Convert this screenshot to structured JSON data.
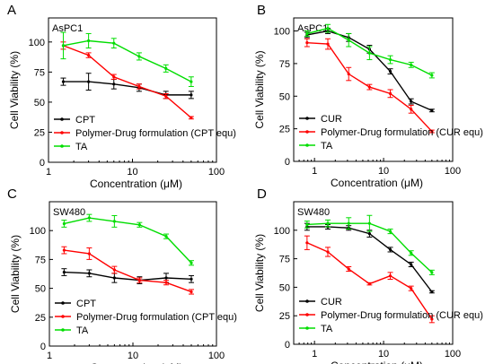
{
  "chart_data": [
    {
      "panel_label": "A",
      "cell_line": "AsPC1",
      "type": "line",
      "xscale": "log",
      "xlim": [
        1,
        100
      ],
      "ylim": [
        0,
        120
      ],
      "xticks": [
        1,
        10,
        100
      ],
      "yticks": [
        0,
        25,
        50,
        75,
        100
      ],
      "xlabel": "Concentration (μM)",
      "ylabel": "Cell Viability (%)",
      "legend_position": "bottom-left",
      "series": [
        {
          "name": "CPT",
          "color": "#000000",
          "x": [
            1.5,
            3,
            6,
            12,
            25,
            50
          ],
          "y": [
            67,
            67,
            65,
            62,
            56,
            56
          ],
          "err": [
            3,
            7,
            4,
            3,
            3,
            3
          ]
        },
        {
          "name": "Polymer-Drug formulation (CPT equ)",
          "color": "#ff0000",
          "x": [
            1.5,
            3,
            6,
            12,
            25,
            50
          ],
          "y": [
            97,
            89,
            71,
            63,
            55,
            37
          ],
          "err": [
            3,
            2,
            2,
            2,
            2,
            1
          ]
        },
        {
          "name": "TA",
          "color": "#00dd00",
          "x": [
            1.5,
            3,
            6,
            12,
            25,
            50
          ],
          "y": [
            97,
            101,
            99,
            88,
            78,
            67
          ],
          "err": [
            11,
            6,
            4,
            3,
            3,
            4
          ]
        }
      ]
    },
    {
      "panel_label": "B",
      "cell_line": "AsPC1",
      "type": "line",
      "xscale": "log",
      "xlim": [
        0.5,
        100
      ],
      "ylim": [
        0,
        110
      ],
      "xticks": [
        1,
        10,
        100
      ],
      "yticks": [
        0,
        25,
        50,
        75,
        100
      ],
      "xlabel": "Concentration (μM)",
      "ylabel": "Cell Viability (%)",
      "legend_position": "bottom-left",
      "series": [
        {
          "name": "CUR",
          "color": "#000000",
          "x": [
            0.78,
            1.56,
            3.125,
            6.25,
            12.5,
            25,
            50
          ],
          "y": [
            97,
            100,
            95,
            86,
            69,
            46,
            39
          ],
          "err": [
            2,
            2,
            3,
            3,
            2,
            2,
            1
          ]
        },
        {
          "name": "Polymer-Drug formulation (CUR equ)",
          "color": "#ff0000",
          "x": [
            0.78,
            1.56,
            3.125,
            6.25,
            12.5,
            25,
            50
          ],
          "y": [
            91,
            90,
            67,
            57,
            52,
            40,
            23
          ],
          "err": [
            3,
            4,
            5,
            2,
            3,
            3,
            1
          ]
        },
        {
          "name": "TA",
          "color": "#00dd00",
          "x": [
            0.78,
            1.56,
            3.125,
            6.25,
            12.5,
            25,
            50
          ],
          "y": [
            98,
            102,
            93,
            83,
            78,
            74,
            66
          ],
          "err": [
            2,
            3,
            5,
            5,
            3,
            2,
            2
          ]
        }
      ]
    },
    {
      "panel_label": "C",
      "cell_line": "SW480",
      "type": "line",
      "xscale": "log",
      "xlim": [
        1,
        100
      ],
      "ylim": [
        0,
        125
      ],
      "xticks": [
        1,
        10,
        100
      ],
      "yticks": [
        0,
        25,
        50,
        75,
        100
      ],
      "xlabel": "Concentration (μM)",
      "ylabel": "Cell Viability (%)",
      "legend_position": "bottom-left",
      "series": [
        {
          "name": "CPT",
          "color": "#000000",
          "x": [
            1.5,
            3,
            6,
            12,
            25,
            50
          ],
          "y": [
            64,
            63,
            59,
            57,
            59,
            58
          ],
          "err": [
            3,
            3,
            4,
            3,
            4,
            3
          ]
        },
        {
          "name": "Polymer-Drug formulation (CPT equ)",
          "color": "#ff0000",
          "x": [
            1.5,
            3,
            6,
            12,
            25,
            50
          ],
          "y": [
            83,
            80,
            66,
            57,
            55,
            47
          ],
          "err": [
            3,
            5,
            3,
            2,
            2,
            2
          ]
        },
        {
          "name": "TA",
          "color": "#00dd00",
          "x": [
            1.5,
            3,
            6,
            12,
            25,
            50
          ],
          "y": [
            106,
            111,
            108,
            105,
            95,
            72
          ],
          "err": [
            3,
            3,
            5,
            2,
            2,
            2
          ]
        }
      ]
    },
    {
      "panel_label": "D",
      "cell_line": "SW480",
      "type": "line",
      "xscale": "log",
      "xlim": [
        0.5,
        100
      ],
      "ylim": [
        0,
        125
      ],
      "xticks": [
        1,
        10,
        100
      ],
      "yticks": [
        0,
        25,
        50,
        75,
        100
      ],
      "xlabel": "Concentration (μM)",
      "ylabel": "Cell Viability (%)",
      "legend_position": "bottom-left",
      "series": [
        {
          "name": "CUR",
          "color": "#000000",
          "x": [
            0.78,
            1.56,
            3.125,
            6.25,
            12.5,
            25,
            50
          ],
          "y": [
            103,
            103,
            102,
            97,
            83,
            70,
            46
          ],
          "err": [
            3,
            2,
            2,
            3,
            2,
            2,
            1
          ]
        },
        {
          "name": "Polymer-Drug formulation (CUR equ)",
          "color": "#ff0000",
          "x": [
            0.78,
            1.56,
            3.125,
            6.25,
            12.5,
            25,
            50
          ],
          "y": [
            89,
            81,
            66,
            53,
            60,
            49,
            22
          ],
          "err": [
            6,
            4,
            2,
            1,
            3,
            2,
            3
          ]
        },
        {
          "name": "TA",
          "color": "#00dd00",
          "x": [
            0.78,
            1.56,
            3.125,
            6.25,
            12.5,
            25,
            50
          ],
          "y": [
            105,
            106,
            106,
            106,
            99,
            80,
            63
          ],
          "err": [
            3,
            3,
            5,
            7,
            2,
            2,
            2
          ]
        }
      ]
    }
  ]
}
